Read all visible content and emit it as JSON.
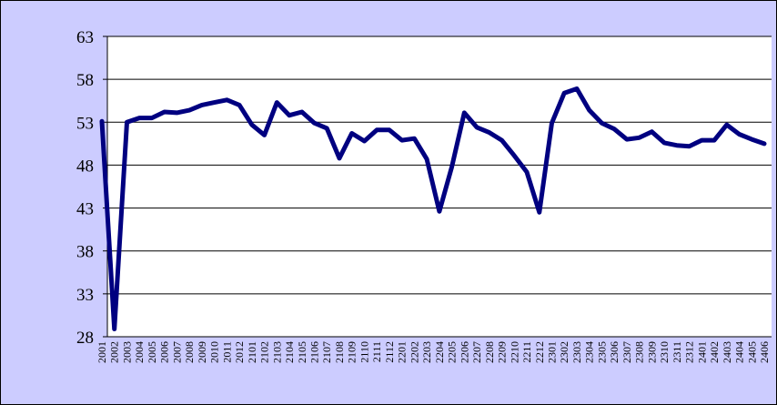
{
  "chart_data": {
    "type": "line",
    "categories": [
      "2001",
      "2002",
      "2003",
      "2004",
      "2005",
      "2006",
      "2007",
      "2008",
      "2009",
      "2010",
      "2011",
      "2012",
      "2101",
      "2102",
      "2103",
      "2104",
      "2105",
      "2106",
      "2107",
      "2108",
      "2109",
      "2110",
      "2111",
      "2112",
      "2201",
      "2202",
      "2203",
      "2204",
      "2205",
      "2206",
      "2207",
      "2208",
      "2209",
      "2210",
      "2211",
      "2212",
      "2301",
      "2302",
      "2303",
      "2304",
      "2305",
      "2306",
      "2307",
      "2308",
      "2309",
      "2310",
      "2311",
      "2312",
      "2401",
      "2402",
      "2403",
      "2404",
      "2405",
      "2406"
    ],
    "values": [
      53.1,
      28.9,
      53.0,
      53.5,
      53.5,
      54.2,
      54.1,
      54.4,
      55.0,
      55.3,
      55.6,
      55.0,
      52.7,
      51.5,
      55.3,
      53.8,
      54.2,
      52.9,
      52.3,
      48.8,
      51.7,
      50.8,
      52.1,
      52.1,
      50.9,
      51.1,
      48.7,
      42.6,
      47.8,
      54.1,
      52.4,
      51.8,
      50.9,
      49.1,
      47.2,
      42.5,
      52.9,
      56.4,
      56.9,
      54.4,
      52.9,
      52.2,
      51.0,
      51.2,
      51.9,
      50.6,
      50.3,
      50.2,
      50.9,
      50.9,
      52.7,
      51.6,
      51.0,
      50.5
    ],
    "color": "#000080",
    "ylim": [
      28,
      63
    ],
    "yticks": [
      28,
      33,
      38,
      43,
      48,
      53,
      58,
      63
    ],
    "grid": true
  }
}
